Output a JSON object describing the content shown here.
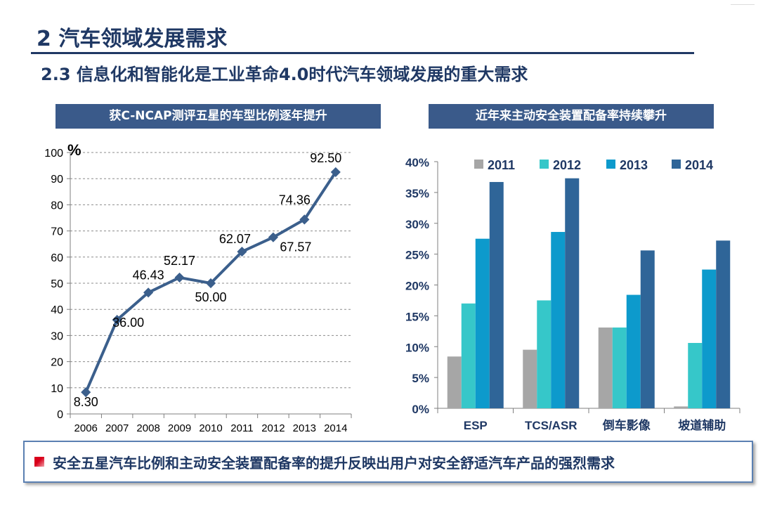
{
  "slide": {
    "title": "2  汽车领域发展需求",
    "subtitle": "2.3  信息化和智能化是工业革命4.0时代汽车领域发展的重大需求",
    "conclusion": "安全五星汽车比例和主动安全装置配备率的提升反映出用户对安全舒适汽车产品的强烈需求"
  },
  "chart_data": [
    {
      "type": "line",
      "title": "获C-NCAP测评五星的车型比例逐年提升",
      "ylabel": "%",
      "xlabel": "",
      "x": [
        "2006",
        "2007",
        "2008",
        "2009",
        "2010",
        "2011",
        "2012",
        "2013",
        "2014"
      ],
      "values": [
        8.3,
        36.0,
        46.43,
        52.17,
        50.0,
        62.07,
        67.57,
        74.36,
        92.5
      ],
      "labels": [
        "8.30",
        "36.00",
        "46.43",
        "52.17",
        "50.00",
        "62.07",
        "67.57",
        "74.36",
        "92.50"
      ],
      "ylim": [
        0,
        100
      ],
      "yticks": [
        0,
        10,
        20,
        30,
        40,
        50,
        60,
        70,
        80,
        90,
        100
      ],
      "grid": true,
      "color": "#3b5f8c"
    },
    {
      "type": "bar",
      "title": "近年来主动安全装置配备率持续攀升",
      "categories": [
        "ESP",
        "TCS/ASR",
        "倒车影像",
        "坡道辅助"
      ],
      "series": [
        {
          "name": "2011",
          "values": [
            0.084,
            0.095,
            0.131,
            0.003
          ],
          "color": "#a6a6a6"
        },
        {
          "name": "2012",
          "values": [
            0.17,
            0.175,
            0.131,
            0.106
          ],
          "color": "#36c7c9"
        },
        {
          "name": "2013",
          "values": [
            0.275,
            0.286,
            0.184,
            0.225
          ],
          "color": "#0d9acc"
        },
        {
          "name": "2014",
          "values": [
            0.367,
            0.373,
            0.256,
            0.272
          ],
          "color": "#2f6598"
        }
      ],
      "ylim": [
        0,
        0.4
      ],
      "yticks": [
        "0%",
        "5%",
        "10%",
        "15%",
        "20%",
        "25%",
        "30%",
        "35%",
        "40%"
      ],
      "legend": "top",
      "grid": false
    }
  ]
}
